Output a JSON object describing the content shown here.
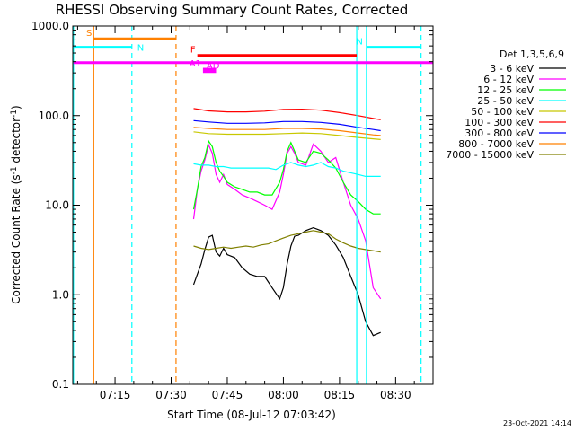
{
  "chart_data": {
    "type": "line",
    "title": "RHESSI Observing Summary Count Rates, Corrected",
    "ylabel": "Corrected Count Rate (s",
    "ylabel_sup1": "-1",
    "ylabel_mid": " detector",
    "ylabel_sup2": "-1",
    "ylabel_end": ")",
    "xlabel": "Start Time (08-Jul-12 07:03:42)",
    "footer": "23-Oct-2021 14:14",
    "legend_title": "Det 1,3,5,6,9",
    "yscale": "log",
    "ylim": [
      0.1,
      1000
    ],
    "y_tick_labels": [
      "0.1",
      "1.0",
      "10.0",
      "100.0",
      "1000.0"
    ],
    "y_tick_values": [
      0.1,
      1,
      10,
      100,
      1000
    ],
    "xlim_min": [
      3.7,
      100
    ],
    "x_tick_labels": [
      "07:15",
      "07:30",
      "07:45",
      "08:00",
      "08:15",
      "08:30"
    ],
    "x_tick_minutes": [
      15,
      30,
      45,
      60,
      75,
      90
    ],
    "series": [
      {
        "name": "3 - 6 keV",
        "color": "#000000",
        "x": [
          36,
          37,
          38,
          39,
          40,
          41,
          42,
          43,
          44,
          45,
          47,
          49,
          51,
          53,
          55,
          57,
          59,
          60,
          61,
          62,
          63,
          64,
          66,
          68,
          70,
          72,
          74,
          76,
          78,
          80,
          82,
          84,
          86
        ],
        "y": [
          1.3,
          1.7,
          2.2,
          3.2,
          4.4,
          4.6,
          3.0,
          2.7,
          3.3,
          2.8,
          2.6,
          2.0,
          1.7,
          1.6,
          1.6,
          1.2,
          0.9,
          1.2,
          2.2,
          3.5,
          4.5,
          4.6,
          5.2,
          5.6,
          5.2,
          4.6,
          3.6,
          2.6,
          1.6,
          1.0,
          0.5,
          0.35,
          0.38
        ]
      },
      {
        "name": "6 - 12 keV",
        "color": "#ff00ff",
        "x": [
          36,
          37,
          38,
          39,
          40,
          41,
          42,
          43,
          44,
          45,
          47,
          49,
          51,
          53,
          55,
          57,
          59,
          60,
          61,
          62,
          63,
          64,
          66,
          68,
          70,
          72,
          74,
          76,
          78,
          80,
          82,
          84,
          86
        ],
        "y": [
          7,
          15,
          24,
          32,
          47,
          38,
          22,
          18,
          22,
          17,
          15,
          13,
          12,
          11,
          10,
          9,
          14,
          22,
          38,
          45,
          38,
          30,
          28,
          48,
          40,
          30,
          34,
          18,
          10,
          7,
          4,
          1.2,
          0.9
        ]
      },
      {
        "name": "12 - 25 keV",
        "color": "#00ff00",
        "x": [
          36,
          37,
          38,
          39,
          40,
          41,
          42,
          43,
          44,
          45,
          47,
          49,
          51,
          53,
          55,
          57,
          59,
          60,
          61,
          62,
          63,
          64,
          66,
          68,
          70,
          72,
          74,
          76,
          78,
          80,
          82,
          84,
          86
        ],
        "y": [
          9,
          15,
          27,
          34,
          52,
          45,
          30,
          24,
          21,
          18,
          16,
          15,
          14,
          14,
          13,
          13,
          18,
          25,
          40,
          50,
          40,
          32,
          30,
          40,
          38,
          32,
          26,
          18,
          13,
          11,
          9,
          8,
          8
        ]
      },
      {
        "name": "25 - 50 keV",
        "color": "#00ffff",
        "x": [
          36,
          38,
          40,
          42,
          44,
          46,
          48,
          50,
          52,
          54,
          56,
          58,
          60,
          62,
          64,
          66,
          68,
          70,
          72,
          74,
          76,
          78,
          80,
          82,
          84,
          86
        ],
        "y": [
          29,
          28,
          28,
          27,
          27,
          26,
          26,
          26,
          26,
          26,
          26,
          25,
          28,
          30,
          28,
          27,
          28,
          30,
          27,
          26,
          24,
          23,
          22,
          21,
          21,
          21
        ]
      },
      {
        "name": "50 - 100 keV",
        "color": "#c8c800",
        "x": [
          36,
          40,
          45,
          50,
          55,
          60,
          65,
          70,
          75,
          80,
          84,
          86
        ],
        "y": [
          66,
          63,
          62,
          62,
          62,
          63,
          64,
          63,
          60,
          57,
          55,
          54
        ]
      },
      {
        "name": "100 - 300 keV",
        "color": "#ff0000",
        "x": [
          36,
          40,
          45,
          50,
          55,
          60,
          65,
          70,
          75,
          80,
          84,
          86
        ],
        "y": [
          120,
          113,
          110,
          110,
          112,
          117,
          118,
          115,
          108,
          100,
          93,
          90
        ]
      },
      {
        "name": "300 - 800 keV",
        "color": "#0000ff",
        "x": [
          36,
          40,
          45,
          50,
          55,
          60,
          65,
          70,
          75,
          80,
          84,
          86
        ],
        "y": [
          88,
          85,
          82,
          82,
          83,
          86,
          86,
          84,
          80,
          74,
          70,
          68
        ]
      },
      {
        "name": "800 - 7000 keV",
        "color": "#ff8000",
        "x": [
          36,
          40,
          45,
          50,
          55,
          60,
          65,
          70,
          75,
          80,
          84,
          86
        ],
        "y": [
          74,
          72,
          70,
          70,
          70,
          72,
          72,
          71,
          68,
          64,
          61,
          60
        ]
      },
      {
        "name": "7000 - 15000 keV",
        "color": "#808000",
        "x": [
          36,
          38,
          40,
          42,
          44,
          46,
          48,
          50,
          52,
          54,
          56,
          58,
          60,
          62,
          64,
          66,
          68,
          70,
          72,
          74,
          76,
          78,
          80,
          82,
          84,
          86
        ],
        "y": [
          3.5,
          3.3,
          3.2,
          3.3,
          3.4,
          3.3,
          3.4,
          3.5,
          3.4,
          3.6,
          3.7,
          4.0,
          4.3,
          4.6,
          4.8,
          5.0,
          5.2,
          5.0,
          4.8,
          4.2,
          3.8,
          3.5,
          3.3,
          3.2,
          3.1,
          3.0
        ]
      }
    ],
    "vertical_lines": [
      {
        "minute": 3.9,
        "color": "#00ffff",
        "style": "solid"
      },
      {
        "minute": 9.3,
        "color": "#ff8000",
        "style": "solid"
      },
      {
        "minute": 19.5,
        "color": "#00ffff",
        "style": "dashed"
      },
      {
        "minute": 31.3,
        "color": "#ff8000",
        "style": "dashed"
      },
      {
        "minute": 79.6,
        "color": "#00ffff",
        "style": "solid"
      },
      {
        "minute": 82.2,
        "color": "#00ffff",
        "style": "solid"
      },
      {
        "minute": 96.8,
        "color": "#00ffff",
        "style": "dashed"
      }
    ],
    "flag_bars": [
      {
        "label": "S",
        "color": "#ff8000",
        "x0": 9.3,
        "x1": 31.3,
        "y": 720
      },
      {
        "label": "N",
        "color": "#00ffff",
        "x0": 3.9,
        "x1": 19.5,
        "y": 580
      },
      {
        "label": "N",
        "color": "#00ffff",
        "x0": 82.2,
        "x1": 96.8,
        "y": 580
      },
      {
        "label": "F",
        "color": "#ff0000",
        "x0": 37,
        "x1": 79.6,
        "y": 470
      },
      {
        "label": "",
        "color": "#ff00ff",
        "x0": 3.9,
        "x1": 100,
        "y": 390
      },
      {
        "label": "AD",
        "color": "#ff00ff",
        "x0": 38.5,
        "x1": 42,
        "y": 310
      },
      {
        "label": "A1",
        "color": "#ff00ff",
        "x0": 38.5,
        "x1": 42,
        "y": 330
      }
    ]
  }
}
